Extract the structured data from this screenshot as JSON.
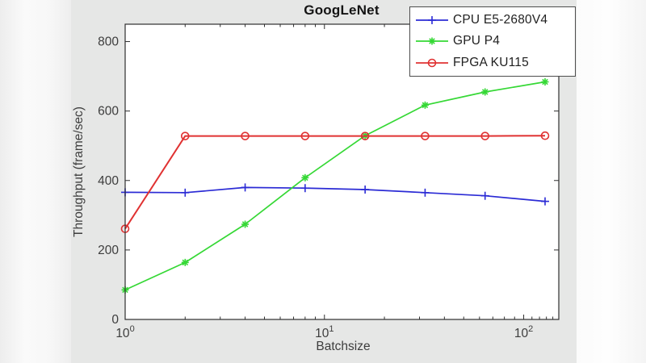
{
  "chart_data": {
    "type": "line",
    "title": "GoogLeNet",
    "xlabel": "Batchsize",
    "ylabel": "Throughput (frame/sec)",
    "xscale": "log",
    "xlim": [
      1,
      150
    ],
    "ylim": [
      0,
      850
    ],
    "yticks": [
      0,
      200,
      400,
      600,
      800
    ],
    "xtick_values": [
      1,
      10,
      100
    ],
    "xtick_exponents": [
      0,
      1,
      2
    ],
    "x": [
      1,
      2,
      4,
      8,
      16,
      32,
      64,
      128
    ],
    "series": [
      {
        "name": "CPU E5-2680V4",
        "color": "#2b2bd5",
        "marker": "plus",
        "values": [
          366,
          365,
          380,
          378,
          374,
          365,
          356,
          340
        ]
      },
      {
        "name": "GPU P4",
        "color": "#35d835",
        "marker": "asterisk",
        "values": [
          85,
          164,
          274,
          408,
          529,
          617,
          655,
          684
        ]
      },
      {
        "name": "FPGA KU115",
        "color": "#e03232",
        "marker": "circle",
        "values": [
          261,
          528,
          528,
          528,
          528,
          528,
          528,
          529
        ]
      }
    ],
    "legend_position": "top-right",
    "grid": false
  },
  "colors": {
    "figure_bg": "#e6e7e6",
    "plot_bg": "#ffffff",
    "axis": "#2f2f2f",
    "tick_label": "#3d3d3d",
    "title": "#141414",
    "legend_bg": "#ffffff",
    "legend_border": "#4d4d4d"
  }
}
